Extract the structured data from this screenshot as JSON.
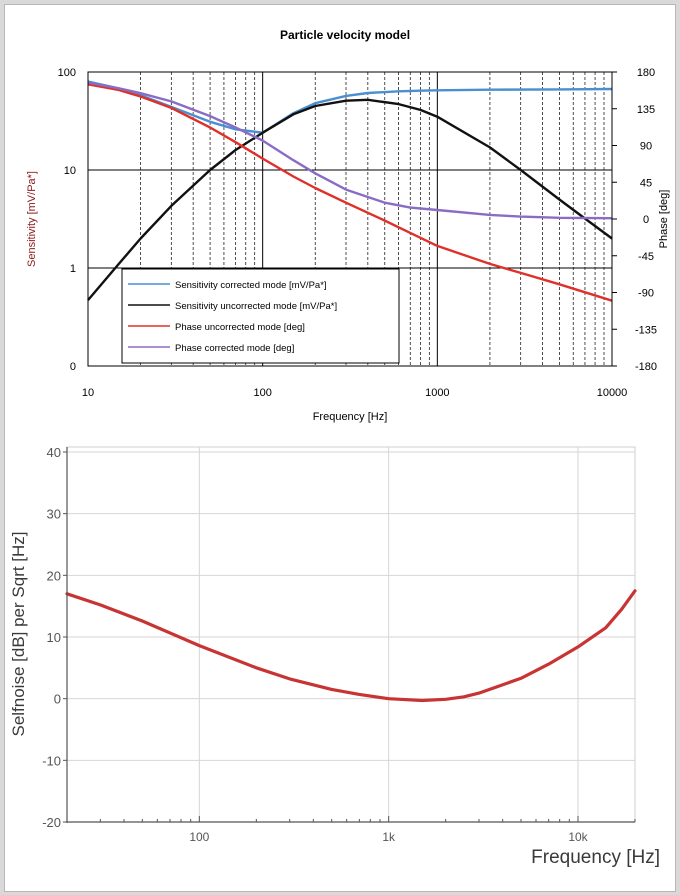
{
  "chart_data": [
    {
      "type": "line",
      "title": "Particle velocity model",
      "xlabel": "Frequency [Hz]",
      "ylabel": "Sensitivity [mV/Pa*]",
      "y2label": "Phase [deg]",
      "xscale": "log",
      "yscale": "log",
      "xlim": [
        10,
        10000
      ],
      "ylim": [
        0.1,
        100
      ],
      "y2lim": [
        -180,
        180
      ],
      "x_ticks": [
        10,
        100,
        1000,
        10000
      ],
      "x_tick_labels": [
        "10",
        "100",
        "1000",
        "10000"
      ],
      "y_ticks": [
        0.1,
        1,
        10,
        100
      ],
      "y_tick_labels": [
        "0",
        "1",
        "10",
        "100"
      ],
      "y2_ticks": [
        180,
        135,
        90,
        45,
        0,
        -45,
        -90,
        -135,
        -180
      ],
      "y2_tick_labels": [
        "180",
        "135",
        "90",
        "45",
        "0",
        "-45",
        "-90",
        "-135",
        "-180"
      ],
      "grid": true,
      "legend_position": "bottom-center",
      "series": [
        {
          "name": "Sensitivity corrected mode [mV/Pa*]",
          "color": "#4a8fd0",
          "axis": "left",
          "x": [
            10,
            15,
            20,
            30,
            50,
            70,
            100,
            150,
            200,
            300,
            400,
            600,
            800,
            1000,
            2000,
            5000,
            10000
          ],
          "y": [
            80,
            68,
            58,
            44,
            31,
            26,
            24,
            38,
            48,
            57,
            61,
            63.5,
            64.5,
            65,
            66,
            66.5,
            67
          ]
        },
        {
          "name": "Sensitivity uncorrected mode [mV/Pa*]",
          "color": "#111111",
          "axis": "left",
          "x": [
            10,
            15,
            20,
            30,
            50,
            70,
            100,
            150,
            200,
            300,
            400,
            600,
            800,
            1000,
            2000,
            3000,
            5000,
            7000,
            10000
          ],
          "y": [
            0.47,
            1.1,
            2.0,
            4.3,
            10,
            16,
            24,
            37,
            45,
            51,
            52,
            47,
            41,
            35,
            17,
            10,
            5,
            3.2,
            2
          ]
        },
        {
          "name": "Phase uncorrected mode [deg]",
          "color": "#e0302a",
          "axis": "right",
          "x": [
            10,
            15,
            20,
            30,
            50,
            70,
            100,
            150,
            200,
            300,
            500,
            700,
            1000,
            2000,
            3000,
            5000,
            10000
          ],
          "y": [
            165,
            158,
            150,
            136,
            112,
            94,
            74,
            52,
            38,
            20,
            -2,
            -17,
            -33,
            -55,
            -66,
            -80,
            -100
          ]
        },
        {
          "name": "Phase corrected mode [deg]",
          "color": "#8b6cc4",
          "axis": "right",
          "x": [
            10,
            15,
            20,
            30,
            50,
            70,
            100,
            150,
            200,
            300,
            500,
            700,
            1000,
            2000,
            3000,
            5000,
            10000
          ],
          "y": [
            167,
            160,
            154,
            144,
            126,
            112,
            96,
            72,
            56,
            36,
            20,
            14,
            11,
            5,
            3,
            1.5,
            1
          ]
        }
      ]
    },
    {
      "type": "line",
      "title": "",
      "xlabel": "Frequency [Hz]",
      "ylabel": "Selfnoise [dB] per Sqrt [Hz]",
      "xscale": "log",
      "xlim": [
        20,
        20000
      ],
      "ylim": [
        -20,
        40
      ],
      "x_ticks": [
        100,
        1000,
        10000
      ],
      "x_tick_labels": [
        "100",
        "1k",
        "10k"
      ],
      "y_ticks": [
        -20,
        -10,
        0,
        10,
        20,
        30,
        40
      ],
      "y_tick_labels": [
        "-20",
        "-10",
        "0",
        "10",
        "20",
        "30",
        "40"
      ],
      "grid": true,
      "series": [
        {
          "color": "#c83434",
          "x": [
            20,
            30,
            50,
            100,
            200,
            300,
            500,
            700,
            1000,
            1500,
            2000,
            2500,
            3000,
            5000,
            7000,
            10000,
            14000,
            17000,
            20000
          ],
          "y": [
            17,
            15.2,
            12.6,
            8.6,
            5,
            3.2,
            1.5,
            0.7,
            0,
            -0.3,
            -0.1,
            0.3,
            0.9,
            3.3,
            5.6,
            8.4,
            11.5,
            14.5,
            17.5
          ]
        }
      ]
    }
  ]
}
